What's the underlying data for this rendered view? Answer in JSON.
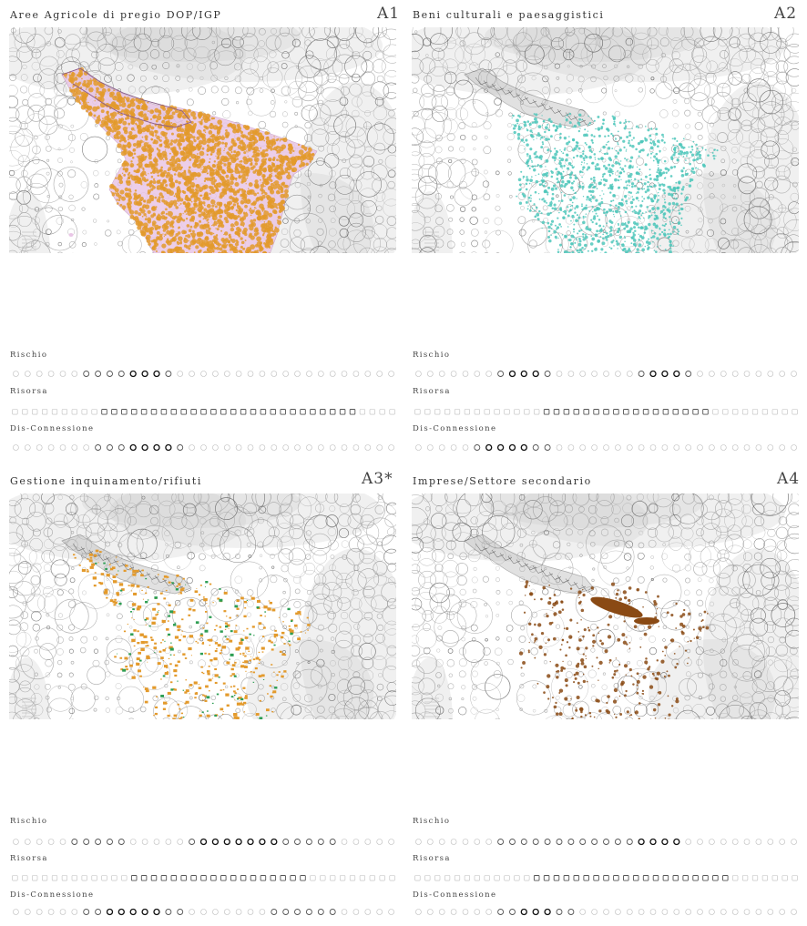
{
  "panels": [
    {
      "id": "A1",
      "title": "Aree Agricole di pregio DOP/IGP",
      "code": "A1",
      "layer_color": "#e39a2c",
      "layer_bg_color": "#e9c6e6",
      "labels": {
        "risk": "Rischio",
        "resource": "Risorsa",
        "disconnection": "Dis-Connessione"
      },
      "scales": {
        "risk": {
          "count": 33,
          "highlight": [
            6,
            13
          ],
          "strong": [
            10,
            12
          ]
        },
        "resource": {
          "count": 39,
          "highlight": [
            9,
            34
          ],
          "strong": []
        },
        "disconnection": {
          "count": 33,
          "highlight": [
            7,
            14
          ],
          "strong": [
            10,
            13
          ]
        }
      }
    },
    {
      "id": "A2",
      "title": "Beni culturali e paesaggistici",
      "code": "A2",
      "layer_color": "#4fc7bb",
      "layer_bg_color": "",
      "labels": {
        "risk": "Rischio",
        "resource": "Risorsa",
        "disconnection": "Dis-Connessione"
      },
      "scales": {
        "risk": {
          "count": 33,
          "highlight": [
            7,
            11,
            19,
            23
          ],
          "strong": [
            8,
            10,
            20,
            22
          ]
        },
        "resource": {
          "count": 39,
          "highlight": [
            13,
            29
          ],
          "strong": []
        },
        "disconnection": {
          "count": 33,
          "highlight": [
            5,
            11
          ],
          "strong": [
            6,
            9
          ]
        }
      }
    },
    {
      "id": "A3",
      "title": "Gestione inquinamento/rifiuti",
      "code": "A3*",
      "layer_color": "#e39a2c",
      "layer_bg_color": "#2e9e54",
      "labels": {
        "risk": "Rischio",
        "resource": "Risorsa",
        "disconnection": "Dis-Connessione"
      },
      "scales": {
        "risk": {
          "count": 33,
          "highlight": [
            5,
            9,
            15,
            27
          ],
          "strong": [
            16,
            22
          ]
        },
        "resource": {
          "count": 39,
          "highlight": [
            12,
            29
          ],
          "strong": []
        },
        "disconnection": {
          "count": 33,
          "highlight": [
            6,
            14,
            22,
            27
          ],
          "strong": [
            8,
            12
          ]
        }
      }
    },
    {
      "id": "A4",
      "title": "Imprese/Settore secondario",
      "code": "A4",
      "layer_color": "#8a4a14",
      "layer_bg_color": "",
      "labels": {
        "risk": "Rischio",
        "resource": "Risorsa",
        "disconnection": "Dis-Connessione"
      },
      "scales": {
        "risk": {
          "count": 33,
          "highlight": [
            7,
            21
          ],
          "strong": [
            19,
            22
          ]
        },
        "resource": {
          "count": 39,
          "highlight": [
            12,
            31
          ],
          "strong": []
        },
        "disconnection": {
          "count": 33,
          "highlight": [
            7,
            13
          ],
          "strong": [
            9,
            11
          ]
        }
      }
    }
  ]
}
